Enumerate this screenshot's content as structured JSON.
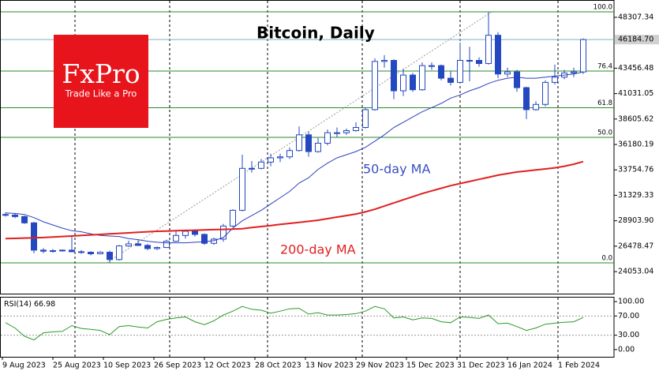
{
  "brand": {
    "name": "FxPro",
    "tagline": "Trade Like a Pro"
  },
  "chart_data": {
    "type": "candlestick",
    "title": "Bitcoin, Daily",
    "x": [
      "2023-08-10",
      "2023-08-13",
      "2023-08-16",
      "2023-08-19",
      "2023-08-22",
      "2023-08-25",
      "2023-08-28",
      "2023-08-31",
      "2023-09-03",
      "2023-09-06",
      "2023-09-09",
      "2023-09-12",
      "2023-09-15",
      "2023-09-18",
      "2023-09-21",
      "2023-09-24",
      "2023-09-27",
      "2023-09-30",
      "2023-10-03",
      "2023-10-06",
      "2023-10-09",
      "2023-10-12",
      "2023-10-15",
      "2023-10-18",
      "2023-10-21",
      "2023-10-24",
      "2023-10-27",
      "2023-10-30",
      "2023-11-02",
      "2023-11-05",
      "2023-11-08",
      "2023-11-11",
      "2023-11-14",
      "2023-11-17",
      "2023-11-20",
      "2023-11-23",
      "2023-11-26",
      "2023-11-29",
      "2023-12-02",
      "2023-12-05",
      "2023-12-08",
      "2023-12-11",
      "2023-12-14",
      "2023-12-17",
      "2023-12-20",
      "2023-12-23",
      "2023-12-26",
      "2023-12-29",
      "2024-01-01",
      "2024-01-04",
      "2024-01-07",
      "2024-01-10",
      "2024-01-13",
      "2024-01-16",
      "2024-01-19",
      "2024-01-22",
      "2024-01-25",
      "2024-01-28",
      "2024-01-31",
      "2024-02-03",
      "2024-02-06",
      "2024-02-09"
    ],
    "open": [
      29500,
      29450,
      29300,
      28700,
      26100,
      26000,
      26050,
      26100,
      25950,
      25900,
      25750,
      25900,
      25200,
      26500,
      26700,
      26550,
      26250,
      26350,
      26950,
      27500,
      27900,
      27600,
      26750,
      27150,
      28400,
      29900,
      33900,
      33900,
      34500,
      34900,
      35000,
      35600,
      37100,
      35500,
      36300,
      37300,
      37300,
      37500,
      37800,
      39500,
      44100,
      44200,
      41300,
      42800,
      41400,
      43700,
      43700,
      42500,
      42100,
      44200,
      44200,
      43900,
      46600,
      42900,
      43100,
      41600,
      39500,
      40000,
      42100,
      42600,
      43000,
      43100
    ],
    "high": [
      29700,
      29600,
      29400,
      28800,
      26300,
      26200,
      26150,
      27500,
      26100,
      26000,
      26000,
      26050,
      26600,
      27000,
      27100,
      26700,
      26450,
      27100,
      27950,
      28000,
      28100,
      27700,
      27300,
      28600,
      30000,
      35200,
      34600,
      34800,
      35300,
      35300,
      35900,
      37900,
      37400,
      36800,
      37600,
      37800,
      37700,
      38300,
      39700,
      44400,
      44700,
      44300,
      43400,
      43000,
      44000,
      44000,
      43800,
      43200,
      45900,
      45500,
      44500,
      48830,
      46900,
      43500,
      43300,
      41700,
      40300,
      42300,
      43800,
      43300,
      43500,
      46300
    ],
    "low": [
      29300,
      29150,
      28600,
      25800,
      25800,
      25850,
      25950,
      25900,
      25750,
      25600,
      25700,
      24890,
      25100,
      26400,
      26500,
      26100,
      26100,
      26300,
      26900,
      27200,
      27400,
      26600,
      26600,
      26900,
      28300,
      29800,
      33500,
      33800,
      34100,
      34500,
      34800,
      35500,
      35000,
      35400,
      36100,
      36900,
      37100,
      37400,
      37700,
      39400,
      43500,
      40500,
      40800,
      41200,
      41300,
      43300,
      42300,
      41800,
      42000,
      42200,
      43600,
      43800,
      42500,
      42600,
      41200,
      38600,
      39400,
      39800,
      41900,
      42400,
      42600,
      42900
    ],
    "close": [
      29450,
      29300,
      28700,
      26100,
      26000,
      26050,
      26100,
      25950,
      25900,
      25750,
      25900,
      25200,
      26500,
      26700,
      26550,
      26250,
      26350,
      26950,
      27500,
      27900,
      27600,
      26750,
      27150,
      28400,
      29900,
      33900,
      33900,
      34500,
      34900,
      35000,
      35600,
      37100,
      35500,
      36300,
      37300,
      37300,
      37500,
      37800,
      39500,
      44100,
      44200,
      41300,
      42800,
      41400,
      43700,
      43700,
      42500,
      42100,
      44200,
      44200,
      43900,
      46600,
      42900,
      43100,
      41600,
      39500,
      40000,
      42100,
      42600,
      43000,
      43100,
      46184.7
    ],
    "up_color": "#ffffff",
    "down_color": "#2448c0",
    "xlim": [
      "2023-08-09",
      "2024-02-18"
    ],
    "xticks": [
      {
        "value": "2023-08-09",
        "label": "9 Aug 2023"
      },
      {
        "value": "2023-08-25",
        "label": "25 Aug 2023"
      },
      {
        "value": "2023-09-10",
        "label": "10 Sep 2023"
      },
      {
        "value": "2023-09-26",
        "label": "26 Sep 2023"
      },
      {
        "value": "2023-10-12",
        "label": "12 Oct 2023"
      },
      {
        "value": "2023-10-28",
        "label": "28 Oct 2023"
      },
      {
        "value": "2023-11-13",
        "label": "13 Nov 2023"
      },
      {
        "value": "2023-11-29",
        "label": "29 Nov 2023"
      },
      {
        "value": "2023-12-15",
        "label": "15 Dec 2023"
      },
      {
        "value": "2023-12-31",
        "label": "31 Dec 2023"
      },
      {
        "value": "2024-01-16",
        "label": "16 Jan 2024"
      },
      {
        "value": "2024-02-01",
        "label": "1 Feb 2024"
      }
    ],
    "xgrid": [
      "2023-09-01",
      "2023-10-01",
      "2023-11-01",
      "2023-12-01",
      "2024-01-01",
      "2024-02-01"
    ],
    "ylim": [
      21950,
      49960
    ],
    "yticks": [
      48307.34,
      43456.48,
      41031.05,
      38605.62,
      36180.19,
      33754.76,
      31329.33,
      {
        "value": 28903.9,
        "label": "28903.90"
      },
      26478.47,
      24053.04
    ],
    "last_price": {
      "value": 46184.7,
      "label": "46184.70"
    },
    "series": [
      {
        "name": "50-day MA",
        "color": "#2f3fbf",
        "values": [
          29650,
          29600,
          29500,
          29200,
          28800,
          28500,
          28200,
          27950,
          27850,
          27650,
          27500,
          27450,
          27400,
          27200,
          27100,
          26950,
          26850,
          26800,
          26800,
          26800,
          26850,
          26900,
          27000,
          27300,
          28200,
          28900,
          29400,
          29900,
          30500,
          31100,
          31700,
          32500,
          33000,
          33800,
          34400,
          34900,
          35200,
          35500,
          35900,
          36500,
          37100,
          37800,
          38300,
          38800,
          39300,
          39700,
          40100,
          40600,
          40900,
          41300,
          41600,
          42000,
          42300,
          42500,
          42600,
          42500,
          42500,
          42600,
          42700,
          42800,
          42900,
          43100
        ]
      },
      {
        "name": "200-day MA",
        "color": "#e02020",
        "values": [
          27200,
          27220,
          27250,
          27280,
          27300,
          27350,
          27400,
          27450,
          27500,
          27550,
          27600,
          27650,
          27700,
          27750,
          27800,
          27850,
          27900,
          27920,
          27950,
          27980,
          28000,
          28030,
          28060,
          28080,
          28100,
          28150,
          28250,
          28350,
          28450,
          28550,
          28650,
          28750,
          28850,
          28950,
          29100,
          29250,
          29400,
          29550,
          29750,
          30000,
          30300,
          30600,
          30900,
          31200,
          31500,
          31750,
          32000,
          32250,
          32450,
          32650,
          32850,
          33050,
          33250,
          33400,
          33550,
          33650,
          33750,
          33850,
          33950,
          34100,
          34300,
          34550
        ]
      }
    ],
    "fib": {
      "color": "#2a8a2a",
      "levels": [
        {
          "value": 48830,
          "label": "100.0"
        },
        {
          "value": 43180,
          "label": "76.4"
        },
        {
          "value": 39685,
          "label": "61.8"
        },
        {
          "value": 36860,
          "label": "50.0"
        },
        {
          "value": 24890,
          "label": "0.0"
        }
      ],
      "anchors": [
        "2023-09-11",
        "2024-01-11"
      ]
    },
    "rsi": {
      "name": "RSI(14)",
      "color": "#2a9a2a",
      "values": [
        56,
        45,
        28,
        20,
        35,
        37,
        38,
        50,
        44,
        42,
        40,
        31,
        48,
        50,
        47,
        45,
        58,
        63,
        66,
        68,
        58,
        52,
        60,
        72,
        80,
        90,
        84,
        82,
        76,
        80,
        85,
        86,
        74,
        77,
        72,
        72,
        73,
        75,
        80,
        90,
        85,
        66,
        68,
        62,
        66,
        65,
        58,
        56,
        68,
        67,
        65,
        72,
        54,
        55,
        48,
        40,
        45,
        53,
        55,
        57,
        58,
        66.98
      ],
      "ylim": [
        -15,
        110
      ],
      "yticks": [
        {
          "value": 100,
          "label": "100.00"
        },
        {
          "value": 70,
          "label": "70.00"
        },
        {
          "value": 30,
          "label": "30.00"
        },
        {
          "value": 0,
          "label": "0.00"
        }
      ],
      "levels": [
        70,
        30
      ]
    }
  }
}
